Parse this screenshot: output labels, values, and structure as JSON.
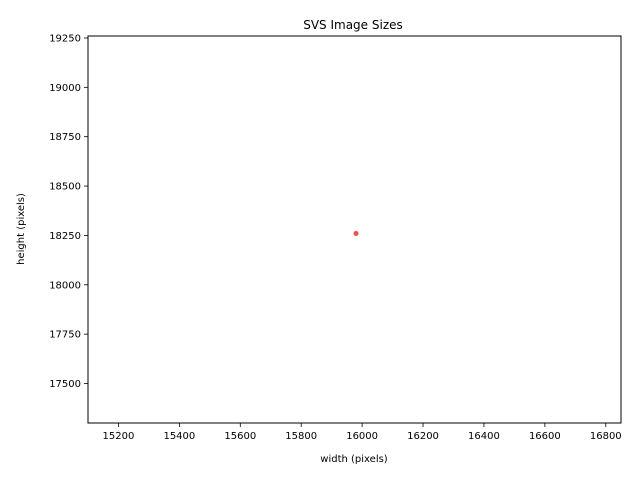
{
  "chart_data": {
    "type": "scatter",
    "title": "SVS Image Sizes",
    "xlabel": "width (pixels)",
    "ylabel": "height (pixels)",
    "xlim": [
      15100,
      16850
    ],
    "ylim": [
      17300,
      19260
    ],
    "xticks": [
      15200,
      15400,
      15600,
      15800,
      16000,
      16200,
      16400,
      16600,
      16800
    ],
    "yticks": [
      17500,
      17750,
      18000,
      18250,
      18500,
      18750,
      19000,
      19250
    ],
    "grid": false,
    "series": [
      {
        "color": "#e8413a",
        "points": [
          {
            "x": 15980,
            "y": 18260
          }
        ]
      }
    ]
  }
}
